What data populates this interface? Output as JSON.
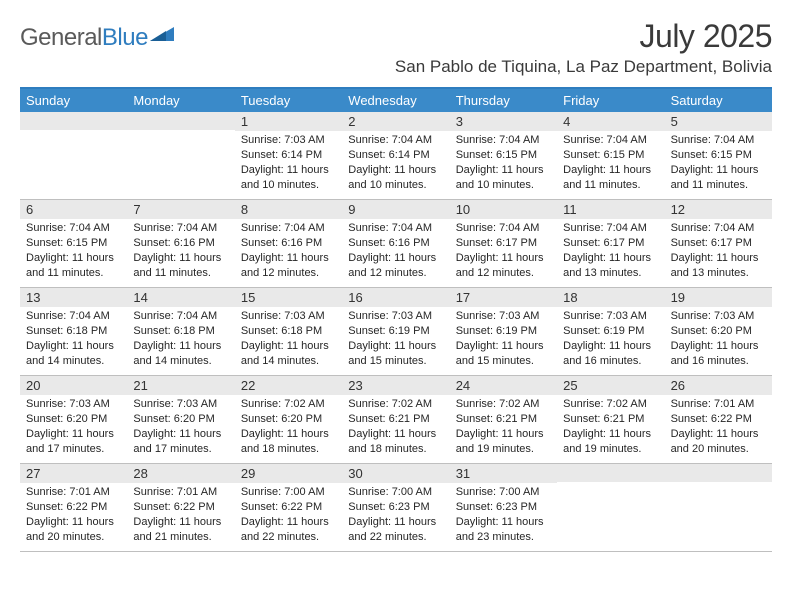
{
  "brand": {
    "part1": "General",
    "part2": "Blue"
  },
  "title": "July 2025",
  "location": "San Pablo de Tiquina, La Paz Department, Bolivia",
  "colors": {
    "header_bar": "#3a8ac9",
    "header_border": "#2f7dbf",
    "daynum_bg": "#e9e9e9",
    "cell_border": "#bfbfbf",
    "text": "#262626",
    "title_text": "#3a3a3a",
    "logo_gray": "#5a5a5a",
    "logo_blue": "#2f7dbf",
    "background": "#ffffff"
  },
  "typography": {
    "title_fontsize": 32,
    "location_fontsize": 17,
    "dayhead_fontsize": 13,
    "daynum_fontsize": 13,
    "body_fontsize": 11
  },
  "layout": {
    "cols": 7,
    "rows": 5,
    "leading_blanks": 2
  },
  "daynames": [
    "Sunday",
    "Monday",
    "Tuesday",
    "Wednesday",
    "Thursday",
    "Friday",
    "Saturday"
  ],
  "days": [
    {
      "n": 1,
      "sunrise": "7:03 AM",
      "sunset": "6:14 PM",
      "daylight": "11 hours and 10 minutes."
    },
    {
      "n": 2,
      "sunrise": "7:04 AM",
      "sunset": "6:14 PM",
      "daylight": "11 hours and 10 minutes."
    },
    {
      "n": 3,
      "sunrise": "7:04 AM",
      "sunset": "6:15 PM",
      "daylight": "11 hours and 10 minutes."
    },
    {
      "n": 4,
      "sunrise": "7:04 AM",
      "sunset": "6:15 PM",
      "daylight": "11 hours and 11 minutes."
    },
    {
      "n": 5,
      "sunrise": "7:04 AM",
      "sunset": "6:15 PM",
      "daylight": "11 hours and 11 minutes."
    },
    {
      "n": 6,
      "sunrise": "7:04 AM",
      "sunset": "6:15 PM",
      "daylight": "11 hours and 11 minutes."
    },
    {
      "n": 7,
      "sunrise": "7:04 AM",
      "sunset": "6:16 PM",
      "daylight": "11 hours and 11 minutes."
    },
    {
      "n": 8,
      "sunrise": "7:04 AM",
      "sunset": "6:16 PM",
      "daylight": "11 hours and 12 minutes."
    },
    {
      "n": 9,
      "sunrise": "7:04 AM",
      "sunset": "6:16 PM",
      "daylight": "11 hours and 12 minutes."
    },
    {
      "n": 10,
      "sunrise": "7:04 AM",
      "sunset": "6:17 PM",
      "daylight": "11 hours and 12 minutes."
    },
    {
      "n": 11,
      "sunrise": "7:04 AM",
      "sunset": "6:17 PM",
      "daylight": "11 hours and 13 minutes."
    },
    {
      "n": 12,
      "sunrise": "7:04 AM",
      "sunset": "6:17 PM",
      "daylight": "11 hours and 13 minutes."
    },
    {
      "n": 13,
      "sunrise": "7:04 AM",
      "sunset": "6:18 PM",
      "daylight": "11 hours and 14 minutes."
    },
    {
      "n": 14,
      "sunrise": "7:04 AM",
      "sunset": "6:18 PM",
      "daylight": "11 hours and 14 minutes."
    },
    {
      "n": 15,
      "sunrise": "7:03 AM",
      "sunset": "6:18 PM",
      "daylight": "11 hours and 14 minutes."
    },
    {
      "n": 16,
      "sunrise": "7:03 AM",
      "sunset": "6:19 PM",
      "daylight": "11 hours and 15 minutes."
    },
    {
      "n": 17,
      "sunrise": "7:03 AM",
      "sunset": "6:19 PM",
      "daylight": "11 hours and 15 minutes."
    },
    {
      "n": 18,
      "sunrise": "7:03 AM",
      "sunset": "6:19 PM",
      "daylight": "11 hours and 16 minutes."
    },
    {
      "n": 19,
      "sunrise": "7:03 AM",
      "sunset": "6:20 PM",
      "daylight": "11 hours and 16 minutes."
    },
    {
      "n": 20,
      "sunrise": "7:03 AM",
      "sunset": "6:20 PM",
      "daylight": "11 hours and 17 minutes."
    },
    {
      "n": 21,
      "sunrise": "7:03 AM",
      "sunset": "6:20 PM",
      "daylight": "11 hours and 17 minutes."
    },
    {
      "n": 22,
      "sunrise": "7:02 AM",
      "sunset": "6:20 PM",
      "daylight": "11 hours and 18 minutes."
    },
    {
      "n": 23,
      "sunrise": "7:02 AM",
      "sunset": "6:21 PM",
      "daylight": "11 hours and 18 minutes."
    },
    {
      "n": 24,
      "sunrise": "7:02 AM",
      "sunset": "6:21 PM",
      "daylight": "11 hours and 19 minutes."
    },
    {
      "n": 25,
      "sunrise": "7:02 AM",
      "sunset": "6:21 PM",
      "daylight": "11 hours and 19 minutes."
    },
    {
      "n": 26,
      "sunrise": "7:01 AM",
      "sunset": "6:22 PM",
      "daylight": "11 hours and 20 minutes."
    },
    {
      "n": 27,
      "sunrise": "7:01 AM",
      "sunset": "6:22 PM",
      "daylight": "11 hours and 20 minutes."
    },
    {
      "n": 28,
      "sunrise": "7:01 AM",
      "sunset": "6:22 PM",
      "daylight": "11 hours and 21 minutes."
    },
    {
      "n": 29,
      "sunrise": "7:00 AM",
      "sunset": "6:22 PM",
      "daylight": "11 hours and 22 minutes."
    },
    {
      "n": 30,
      "sunrise": "7:00 AM",
      "sunset": "6:23 PM",
      "daylight": "11 hours and 22 minutes."
    },
    {
      "n": 31,
      "sunrise": "7:00 AM",
      "sunset": "6:23 PM",
      "daylight": "11 hours and 23 minutes."
    }
  ],
  "labels": {
    "sunrise": "Sunrise: ",
    "sunset": "Sunset: ",
    "daylight": "Daylight: "
  }
}
